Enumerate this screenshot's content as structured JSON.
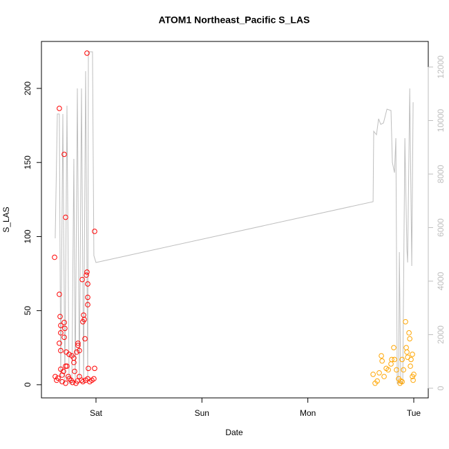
{
  "chart_data": {
    "type": "scatter",
    "title": "ATOM1 Northeast_Pacific S_LAS",
    "xlabel": "Date",
    "ylabel": "S_LAS",
    "xlim": [
      -0.515,
      3.137
    ],
    "xticks": [
      {
        "value": 0,
        "label": "Sat"
      },
      {
        "value": 1,
        "label": "Sun"
      },
      {
        "value": 2,
        "label": "Mon"
      },
      {
        "value": 3,
        "label": "Tue"
      }
    ],
    "ylim": [
      -8.9,
      231.7
    ],
    "yticks": [
      0,
      50,
      100,
      150,
      200
    ],
    "y2lim": [
      -361,
      12955
    ],
    "y2ticks": [
      0,
      2000,
      4000,
      6000,
      8000,
      10000,
      12000
    ],
    "series": [
      {
        "color": "#ff0000",
        "x": [
          -0.391,
          -0.346,
          -0.3,
          -0.287,
          -0.346,
          -0.339,
          -0.333,
          -0.333,
          -0.3,
          -0.294,
          -0.3,
          -0.346,
          -0.333,
          -0.281,
          -0.254,
          -0.228,
          -0.209,
          -0.209,
          -0.183,
          -0.17,
          -0.17,
          -0.157,
          -0.13,
          -0.124,
          -0.117,
          -0.111,
          -0.104,
          -0.091,
          -0.085,
          -0.078,
          -0.078,
          -0.078,
          -0.085,
          -0.013,
          -0.013,
          -0.072,
          -0.385,
          -0.372,
          -0.359,
          -0.32,
          -0.307,
          -0.274,
          -0.261,
          -0.235,
          -0.222,
          -0.202,
          -0.189,
          -0.176,
          -0.157,
          -0.137,
          -0.124,
          -0.098,
          -0.078,
          -0.059,
          -0.039,
          -0.02,
          -0.32,
          -0.287,
          -0.254,
          -0.333,
          -0.287
        ],
        "values": [
          86,
          186.5,
          155.5,
          113,
          61,
          46,
          40,
          35,
          42,
          38,
          32,
          28,
          23,
          22,
          20.5,
          19.5,
          18,
          15,
          22,
          28,
          26.5,
          23,
          71,
          42.5,
          47,
          44,
          31,
          74,
          76,
          68,
          59,
          54,
          223.8,
          103.5,
          11,
          11,
          5.5,
          3,
          4.5,
          2,
          9,
          12.5,
          5.5,
          3,
          1.5,
          9,
          1,
          2.5,
          5.5,
          3,
          2,
          3,
          4,
          2,
          3,
          4,
          6.5,
          1,
          4,
          10.5,
          12.5
        ]
      },
      {
        "color": "#ffa500",
        "x": [
          2.616,
          2.635,
          2.655,
          2.674,
          2.694,
          2.701,
          2.72,
          2.74,
          2.759,
          2.785,
          2.811,
          2.818,
          2.837,
          2.857,
          2.87,
          2.877,
          2.89,
          2.903,
          2.922,
          2.929,
          2.935,
          2.942,
          2.955,
          2.962,
          2.974,
          2.987,
          2.987,
          2.994,
          3.0,
          2.968,
          2.792,
          2.89
        ],
        "values": [
          7,
          1,
          2.5,
          8,
          19.5,
          16,
          5.5,
          11,
          10,
          14,
          25,
          17,
          10,
          4,
          1,
          2.5,
          17,
          10,
          42.5,
          25,
          22,
          18.5,
          35,
          31,
          17,
          20.5,
          5.5,
          3,
          7,
          12.5,
          17,
          2
        ]
      },
      {
        "type": "line",
        "axis": "y2",
        "color": "#bebebe",
        "x": [
          -0.385,
          -0.365,
          -0.346,
          -0.333,
          -0.313,
          -0.294,
          -0.274,
          -0.254,
          -0.228,
          -0.209,
          -0.196,
          -0.176,
          -0.157,
          -0.137,
          -0.117,
          -0.098,
          -0.078,
          -0.072,
          -0.033,
          -0.02,
          0,
          2.616,
          2.622,
          2.648,
          2.668,
          2.688,
          2.714,
          2.747,
          2.785,
          2.798,
          2.818,
          2.831,
          2.844,
          2.857,
          2.864,
          2.877,
          2.896,
          2.916,
          2.935,
          2.942,
          2.962,
          2.981,
          2.994
        ],
        "values": [
          5600,
          10245,
          10245,
          180,
          10245,
          180,
          10555,
          180,
          180,
          8568,
          180,
          11200,
          180,
          11200,
          180,
          11845,
          180,
          12568,
          12568,
          4955,
          4697,
          6968,
          9600,
          9471,
          10065,
          9858,
          9910,
          10426,
          10374,
          8439,
          8052,
          9342,
          180,
          180,
          5084,
          180,
          180,
          9342,
          5213,
          4697,
          11200,
          4568,
          10684
        ]
      }
    ]
  }
}
